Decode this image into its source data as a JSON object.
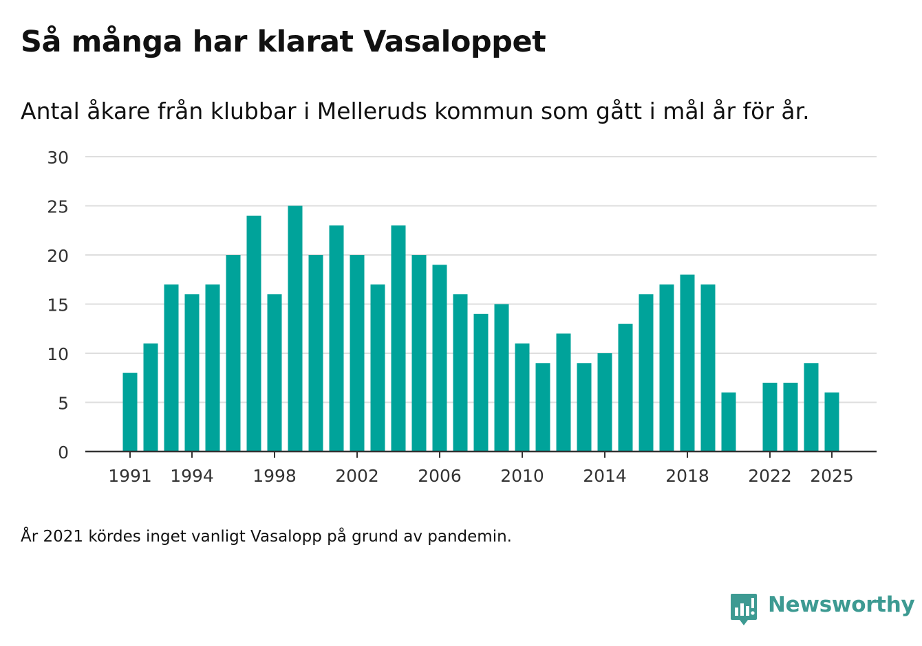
{
  "chart_data": {
    "type": "bar",
    "title": "Så många har klarat Vasaloppet",
    "subtitle": "Antal åkare från klubbar i Melleruds kommun som gått i mål år för år.",
    "footnote": "År 2021 kördes inget vanligt Vasalopp på grund av pandemin.",
    "xlabel": "",
    "ylabel": "",
    "ylim": [
      0,
      30
    ],
    "yticks": [
      0,
      5,
      10,
      15,
      20,
      25,
      30
    ],
    "xticks": [
      1991,
      1994,
      1998,
      2002,
      2006,
      2010,
      2014,
      2018,
      2022,
      2025
    ],
    "grid": true,
    "bar_color": "#00a39a",
    "categories": [
      1991,
      1992,
      1993,
      1994,
      1995,
      1996,
      1997,
      1998,
      1999,
      2000,
      2001,
      2002,
      2003,
      2004,
      2005,
      2006,
      2007,
      2008,
      2009,
      2010,
      2011,
      2012,
      2013,
      2014,
      2015,
      2016,
      2017,
      2018,
      2019,
      2020,
      2021,
      2022,
      2023,
      2024,
      2025
    ],
    "values": [
      8,
      11,
      17,
      16,
      17,
      20,
      24,
      16,
      25,
      20,
      23,
      20,
      17,
      23,
      20,
      19,
      16,
      14,
      15,
      11,
      9,
      12,
      9,
      10,
      13,
      16,
      17,
      18,
      17,
      6,
      null,
      7,
      7,
      9,
      6
    ]
  },
  "brand": {
    "name": "Newsworthy",
    "logo_icon": "bar-chart-speech-bubble-icon",
    "color": "#3d9a92"
  }
}
